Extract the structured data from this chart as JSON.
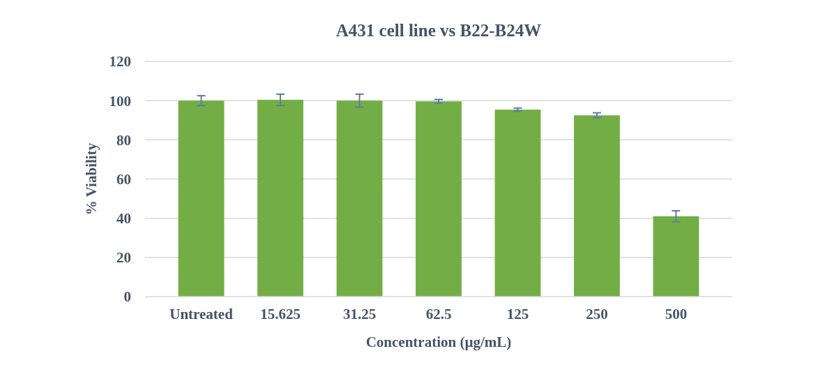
{
  "chart_data": {
    "type": "bar",
    "title": "A431 cell line vs B22-B24W",
    "xlabel": "Concentration (µg/mL)",
    "ylabel": "% Viability",
    "categories": [
      "Untreated",
      "15.625",
      "31.25",
      "62.5",
      "125",
      "250",
      "500"
    ],
    "values": [
      100,
      100.4,
      100,
      99.6,
      95.4,
      92.5,
      41
    ],
    "errors": [
      2.5,
      2.9,
      3.3,
      1,
      0.8,
      1.3,
      2.8
    ],
    "color": "#72ae45",
    "ylim": [
      0,
      120
    ],
    "yticks": [
      0,
      20,
      40,
      60,
      80,
      100,
      120
    ],
    "grid": "y"
  }
}
